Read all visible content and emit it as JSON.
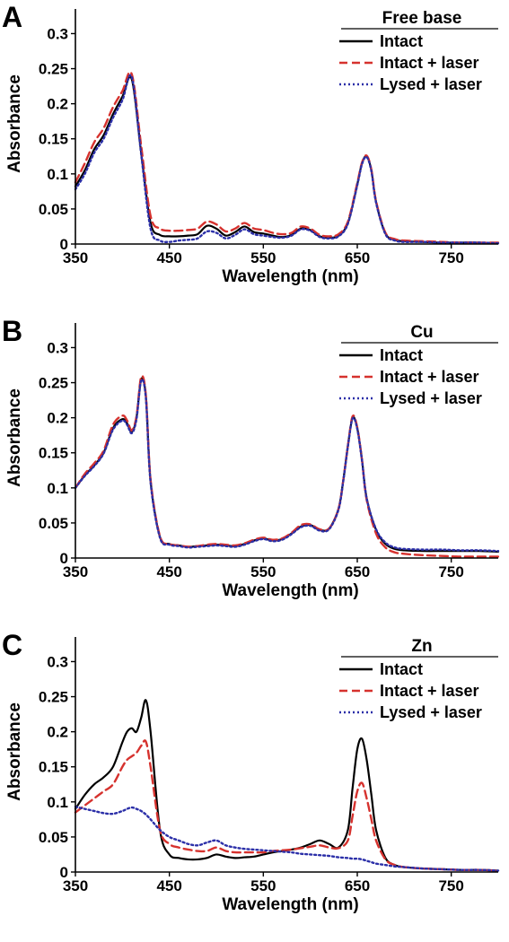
{
  "chart_data": [
    {
      "type": "line",
      "panel": "A",
      "legend_title": "Free base",
      "xlabel": "Wavelength (nm)",
      "ylabel": "Absorbance",
      "xlim": [
        350,
        800
      ],
      "ylim": [
        0,
        0.33
      ],
      "xticks": [
        350,
        450,
        550,
        650,
        750
      ],
      "xtick_labels": [
        "350",
        "450",
        "550",
        "650",
        "750"
      ],
      "yticks": [
        0,
        0.05,
        0.1,
        0.15,
        0.2,
        0.25,
        0.3
      ],
      "ytick_labels": [
        "0",
        "0.05",
        "0.1",
        "0.15",
        "0.2",
        "0.25",
        "0.3"
      ],
      "grid": false,
      "legend_position": "top-right",
      "x": [
        350,
        360,
        370,
        380,
        390,
        400,
        410,
        420,
        430,
        440,
        450,
        460,
        470,
        480,
        490,
        500,
        510,
        520,
        530,
        540,
        550,
        560,
        570,
        580,
        590,
        600,
        610,
        620,
        630,
        640,
        650,
        655,
        660,
        665,
        670,
        680,
        690,
        700,
        720,
        740,
        760,
        780,
        800
      ],
      "series": [
        {
          "name": "Intact",
          "color": "#000000",
          "dash": "solid",
          "values": [
            0.082,
            0.105,
            0.135,
            0.155,
            0.185,
            0.21,
            0.235,
            0.13,
            0.03,
            0.013,
            0.011,
            0.011,
            0.012,
            0.014,
            0.026,
            0.022,
            0.012,
            0.017,
            0.025,
            0.017,
            0.015,
            0.012,
            0.01,
            0.013,
            0.022,
            0.02,
            0.011,
            0.009,
            0.012,
            0.03,
            0.085,
            0.115,
            0.125,
            0.105,
            0.06,
            0.015,
            0.006,
            0.004,
            0.003,
            0.002,
            0.002,
            0.002,
            0.001
          ]
        },
        {
          "name": "Intact + laser",
          "color": "#d6322e",
          "dash": "dashed",
          "values": [
            0.088,
            0.115,
            0.145,
            0.165,
            0.195,
            0.218,
            0.242,
            0.14,
            0.04,
            0.022,
            0.019,
            0.019,
            0.02,
            0.022,
            0.032,
            0.028,
            0.018,
            0.022,
            0.03,
            0.022,
            0.02,
            0.016,
            0.014,
            0.016,
            0.025,
            0.022,
            0.013,
            0.011,
            0.014,
            0.032,
            0.087,
            0.116,
            0.126,
            0.106,
            0.061,
            0.016,
            0.007,
            0.005,
            0.004,
            0.003,
            0.002,
            0.002,
            0.002
          ]
        },
        {
          "name": "Lysed + laser",
          "color": "#2b2fa8",
          "dash": "dotted",
          "values": [
            0.078,
            0.1,
            0.13,
            0.15,
            0.18,
            0.205,
            0.238,
            0.128,
            0.022,
            0.005,
            0.003,
            0.005,
            0.006,
            0.008,
            0.018,
            0.016,
            0.008,
            0.013,
            0.021,
            0.014,
            0.012,
            0.01,
            0.009,
            0.012,
            0.021,
            0.019,
            0.01,
            0.008,
            0.011,
            0.029,
            0.084,
            0.114,
            0.124,
            0.104,
            0.059,
            0.014,
            0.005,
            0.003,
            0.003,
            0.002,
            0.002,
            0.002,
            0.001
          ]
        }
      ]
    },
    {
      "type": "line",
      "panel": "B",
      "legend_title": "Cu",
      "xlabel": "Wavelength (nm)",
      "ylabel": "Absorbance",
      "xlim": [
        350,
        800
      ],
      "ylim": [
        0,
        0.33
      ],
      "xticks": [
        350,
        450,
        550,
        650,
        750
      ],
      "xtick_labels": [
        "350",
        "450",
        "550",
        "650",
        "750"
      ],
      "yticks": [
        0,
        0.05,
        0.1,
        0.15,
        0.2,
        0.25,
        0.3
      ],
      "ytick_labels": [
        "0",
        "0.05",
        "0.1",
        "0.15",
        "0.2",
        "0.25",
        "0.3"
      ],
      "grid": false,
      "legend_position": "top-right",
      "x": [
        350,
        360,
        370,
        380,
        390,
        400,
        405,
        410,
        415,
        420,
        425,
        430,
        440,
        450,
        460,
        470,
        480,
        490,
        500,
        510,
        520,
        530,
        540,
        550,
        560,
        570,
        580,
        590,
        600,
        610,
        620,
        630,
        635,
        640,
        645,
        650,
        655,
        660,
        670,
        680,
        690,
        700,
        720,
        740,
        760,
        780,
        800
      ],
      "series": [
        {
          "name": "Intact",
          "color": "#000000",
          "dash": "solid",
          "values": [
            0.1,
            0.118,
            0.132,
            0.15,
            0.185,
            0.198,
            0.192,
            0.18,
            0.2,
            0.255,
            0.23,
            0.11,
            0.03,
            0.02,
            0.018,
            0.016,
            0.017,
            0.018,
            0.019,
            0.018,
            0.017,
            0.02,
            0.025,
            0.028,
            0.025,
            0.027,
            0.035,
            0.045,
            0.047,
            0.04,
            0.042,
            0.07,
            0.11,
            0.16,
            0.2,
            0.185,
            0.14,
            0.085,
            0.04,
            0.02,
            0.013,
            0.011,
            0.01,
            0.01,
            0.01,
            0.01,
            0.009
          ]
        },
        {
          "name": "Intact + laser",
          "color": "#d6322e",
          "dash": "dashed",
          "values": [
            0.1,
            0.12,
            0.135,
            0.153,
            0.19,
            0.203,
            0.196,
            0.182,
            0.202,
            0.258,
            0.232,
            0.112,
            0.031,
            0.02,
            0.018,
            0.016,
            0.017,
            0.019,
            0.02,
            0.019,
            0.018,
            0.021,
            0.026,
            0.029,
            0.026,
            0.028,
            0.036,
            0.047,
            0.048,
            0.041,
            0.042,
            0.07,
            0.11,
            0.16,
            0.202,
            0.186,
            0.14,
            0.083,
            0.035,
            0.015,
            0.008,
            0.006,
            0.004,
            0.003,
            0.002,
            0.002,
            0.002
          ]
        },
        {
          "name": "Lysed + laser",
          "color": "#2b2fa8",
          "dash": "dotted",
          "values": [
            0.1,
            0.117,
            0.131,
            0.149,
            0.183,
            0.196,
            0.19,
            0.178,
            0.198,
            0.253,
            0.228,
            0.108,
            0.029,
            0.019,
            0.017,
            0.015,
            0.016,
            0.017,
            0.018,
            0.017,
            0.016,
            0.019,
            0.024,
            0.027,
            0.024,
            0.026,
            0.034,
            0.044,
            0.046,
            0.039,
            0.041,
            0.069,
            0.109,
            0.159,
            0.199,
            0.184,
            0.139,
            0.085,
            0.041,
            0.022,
            0.015,
            0.013,
            0.012,
            0.012,
            0.011,
            0.011,
            0.01
          ]
        }
      ]
    },
    {
      "type": "line",
      "panel": "C",
      "legend_title": "Zn",
      "xlabel": "Wavelength (nm)",
      "ylabel": "Absorbance",
      "xlim": [
        350,
        800
      ],
      "ylim": [
        0,
        0.33
      ],
      "xticks": [
        350,
        450,
        550,
        650,
        750
      ],
      "xtick_labels": [
        "350",
        "450",
        "550",
        "650",
        "750"
      ],
      "yticks": [
        0,
        0.05,
        0.1,
        0.15,
        0.2,
        0.25,
        0.3
      ],
      "ytick_labels": [
        "0",
        "0.05",
        "0.1",
        "0.15",
        "0.2",
        "0.25",
        "0.3"
      ],
      "grid": false,
      "legend_position": "top-right",
      "x": [
        350,
        360,
        370,
        380,
        390,
        400,
        405,
        410,
        415,
        420,
        425,
        430,
        440,
        450,
        460,
        470,
        480,
        490,
        500,
        510,
        520,
        530,
        540,
        550,
        560,
        570,
        580,
        590,
        600,
        610,
        620,
        630,
        640,
        645,
        650,
        655,
        660,
        665,
        670,
        680,
        690,
        700,
        720,
        740,
        760,
        780,
        800
      ],
      "series": [
        {
          "name": "Intact",
          "color": "#000000",
          "dash": "solid",
          "values": [
            0.09,
            0.11,
            0.125,
            0.135,
            0.15,
            0.185,
            0.2,
            0.205,
            0.2,
            0.22,
            0.245,
            0.2,
            0.06,
            0.025,
            0.02,
            0.018,
            0.018,
            0.02,
            0.025,
            0.022,
            0.02,
            0.021,
            0.022,
            0.025,
            0.028,
            0.03,
            0.032,
            0.035,
            0.04,
            0.045,
            0.04,
            0.035,
            0.06,
            0.12,
            0.175,
            0.19,
            0.16,
            0.11,
            0.06,
            0.02,
            0.01,
            0.007,
            0.005,
            0.004,
            0.003,
            0.003,
            0.002
          ]
        },
        {
          "name": "Intact + laser",
          "color": "#d6322e",
          "dash": "dashed",
          "values": [
            0.085,
            0.095,
            0.105,
            0.115,
            0.125,
            0.15,
            0.16,
            0.165,
            0.17,
            0.18,
            0.186,
            0.15,
            0.06,
            0.04,
            0.035,
            0.032,
            0.03,
            0.03,
            0.035,
            0.03,
            0.028,
            0.028,
            0.028,
            0.028,
            0.03,
            0.031,
            0.032,
            0.034,
            0.036,
            0.038,
            0.035,
            0.034,
            0.045,
            0.08,
            0.115,
            0.127,
            0.105,
            0.075,
            0.045,
            0.018,
            0.01,
            0.007,
            0.005,
            0.004,
            0.003,
            0.003,
            0.002
          ]
        },
        {
          "name": "Lysed + laser",
          "color": "#2b2fa8",
          "dash": "dotted",
          "values": [
            0.093,
            0.09,
            0.087,
            0.084,
            0.083,
            0.087,
            0.09,
            0.092,
            0.09,
            0.087,
            0.082,
            0.075,
            0.06,
            0.05,
            0.045,
            0.04,
            0.038,
            0.042,
            0.045,
            0.038,
            0.035,
            0.033,
            0.032,
            0.031,
            0.03,
            0.029,
            0.028,
            0.026,
            0.025,
            0.024,
            0.023,
            0.021,
            0.02,
            0.019,
            0.019,
            0.018,
            0.016,
            0.014,
            0.012,
            0.01,
            0.008,
            0.007,
            0.005,
            0.004,
            0.003,
            0.003,
            0.002
          ]
        }
      ]
    }
  ]
}
